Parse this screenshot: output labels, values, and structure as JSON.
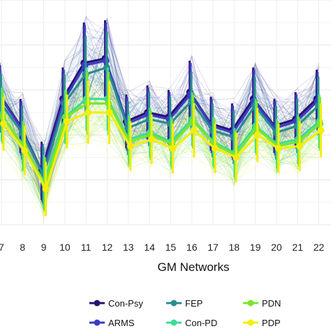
{
  "chart_data": {
    "type": "line",
    "title": "",
    "xlabel": "GM Networks",
    "ylabel": "",
    "grid": true,
    "legend_position": "bottom",
    "x": [
      "7",
      "8",
      "9",
      "10",
      "11",
      "12",
      "13",
      "14",
      "15",
      "16",
      "17",
      "18",
      "19",
      "20",
      "21",
      "22"
    ],
    "ylim": [
      0,
      10
    ],
    "series": [
      {
        "name": "Con-Psy",
        "color": "#2b1170",
        "values": [
          5.8,
          4.4,
          2.4,
          5.6,
          7.2,
          7.4,
          4.6,
          5.0,
          4.8,
          5.9,
          4.5,
          4.2,
          5.6,
          4.4,
          4.7,
          5.6
        ],
        "err": [
          1.4,
          1.2,
          1.3,
          1.4,
          1.8,
          1.7,
          1.2,
          1.2,
          1.2,
          1.4,
          1.2,
          1.2,
          1.4,
          1.2,
          1.2,
          1.3
        ]
      },
      {
        "name": "ARMS",
        "color": "#3a3dc4",
        "values": [
          5.7,
          4.3,
          2.3,
          5.5,
          7.1,
          7.3,
          4.5,
          4.9,
          4.7,
          5.8,
          4.4,
          4.1,
          5.5,
          4.3,
          4.6,
          5.5
        ],
        "err": [
          1.4,
          1.2,
          1.3,
          1.4,
          1.8,
          1.7,
          1.2,
          1.2,
          1.2,
          1.4,
          1.2,
          1.2,
          1.4,
          1.2,
          1.2,
          1.3
        ]
      },
      {
        "name": "FEP",
        "color": "#2a8d8d",
        "values": [
          5.4,
          4.1,
          2.2,
          5.4,
          6.7,
          7.0,
          4.3,
          4.7,
          4.5,
          5.5,
          4.2,
          3.9,
          5.3,
          4.1,
          4.4,
          5.3
        ],
        "err": [
          1.3,
          1.2,
          1.3,
          1.3,
          1.7,
          1.6,
          1.2,
          1.2,
          1.2,
          1.3,
          1.2,
          1.2,
          1.3,
          1.2,
          1.2,
          1.3
        ]
      },
      {
        "name": "Con-PD",
        "color": "#3ddc97",
        "values": [
          4.9,
          3.5,
          1.9,
          4.8,
          5.6,
          5.6,
          3.8,
          4.1,
          3.7,
          4.7,
          3.7,
          3.2,
          4.4,
          3.6,
          3.8,
          4.6
        ],
        "err": [
          1.2,
          1.1,
          1.2,
          1.2,
          1.4,
          1.4,
          1.1,
          1.1,
          1.1,
          1.2,
          1.1,
          1.1,
          1.2,
          1.1,
          1.1,
          1.2
        ]
      },
      {
        "name": "PDN",
        "color": "#7ce52a",
        "values": [
          4.8,
          3.5,
          1.8,
          4.8,
          5.4,
          5.4,
          3.7,
          4.0,
          3.6,
          4.6,
          3.6,
          3.1,
          4.3,
          3.5,
          3.7,
          4.5
        ],
        "err": [
          1.2,
          1.1,
          1.2,
          1.2,
          1.4,
          1.4,
          1.1,
          1.1,
          1.1,
          1.2,
          1.1,
          1.1,
          1.2,
          1.1,
          1.1,
          1.2
        ]
      },
      {
        "name": "PDP",
        "color": "#f2ee0c",
        "values": [
          4.5,
          3.3,
          1.6,
          4.6,
          5.0,
          5.0,
          3.5,
          3.8,
          3.4,
          4.2,
          3.4,
          3.0,
          4.0,
          3.4,
          3.5,
          4.2
        ],
        "err": [
          1.2,
          1.1,
          1.2,
          1.2,
          1.4,
          1.4,
          1.1,
          1.1,
          1.1,
          1.2,
          1.1,
          1.1,
          1.2,
          1.1,
          1.1,
          1.2
        ]
      }
    ]
  }
}
